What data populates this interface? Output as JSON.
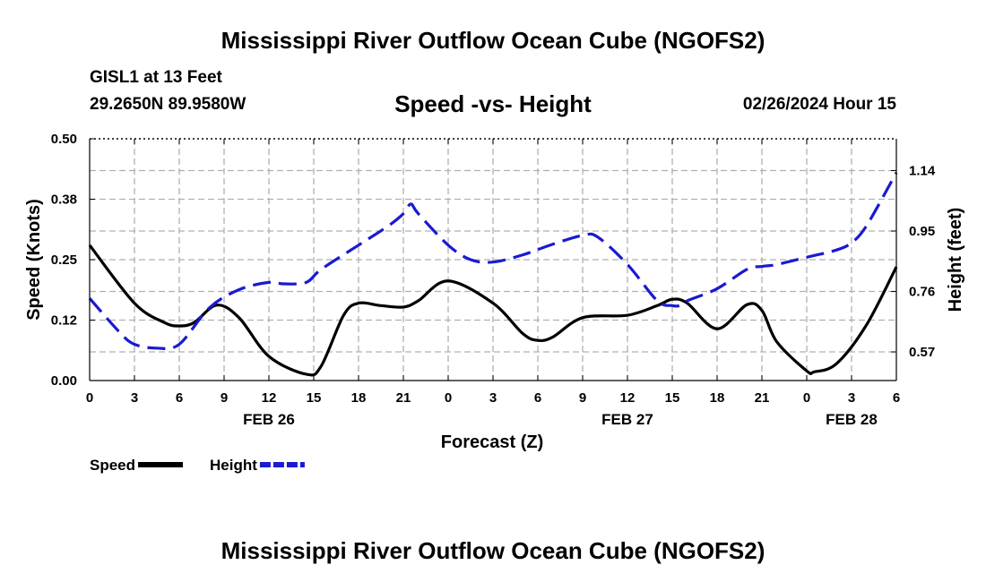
{
  "header": {
    "title": "Mississippi River Outflow Ocean Cube (NGOFS2)",
    "station": "GISL1 at 13 Feet",
    "coords": "29.2650N  89.9580W",
    "subtitle": "Speed -vs- Height",
    "datetime": "02/26/2024 Hour 15"
  },
  "footer": {
    "title": "Mississippi River Outflow Ocean Cube (NGOFS2)"
  },
  "chart_data": {
    "type": "line",
    "xlabel": "Forecast (Z)",
    "ylabel_left": "Speed (Knots)",
    "ylabel_right": "Height (feet)",
    "xlim": [
      0,
      54
    ],
    "ylim_left": [
      0,
      0.5
    ],
    "ylim_right": [
      0.48,
      1.24
    ],
    "x_ticks": [
      0,
      3,
      6,
      9,
      12,
      15,
      18,
      21,
      24,
      27,
      30,
      33,
      36,
      39,
      42,
      45,
      48,
      51,
      54
    ],
    "x_tick_labels": [
      "0",
      "3",
      "6",
      "9",
      "12",
      "15",
      "18",
      "21",
      "0",
      "3",
      "6",
      "9",
      "12",
      "15",
      "18",
      "21",
      "0",
      "3",
      "6"
    ],
    "date_labels": [
      {
        "x": 12,
        "label": "FEB 26"
      },
      {
        "x": 36,
        "label": "FEB 27"
      },
      {
        "x": 51,
        "label": "FEB 28"
      }
    ],
    "y_left_ticks": [
      0.0,
      0.125,
      0.25,
      0.375,
      0.5
    ],
    "y_left_tick_labels": [
      "0.00",
      "0.12",
      "0.25",
      "0.38",
      "0.50"
    ],
    "y_right_ticks": [
      0.57,
      0.76,
      0.95,
      1.14
    ],
    "y_right_tick_labels": [
      "0.57",
      "0.76",
      "0.95",
      "1.14"
    ],
    "grid": true,
    "legend": "bottom-left",
    "series": [
      {
        "name": "Speed",
        "axis": "left",
        "color": "#000000",
        "style": "solid",
        "x": [
          0,
          3,
          5,
          6,
          7,
          8.5,
          10,
          12,
          14.5,
          15.5,
          17,
          18,
          19.5,
          21,
          22,
          24,
          27,
          29,
          30,
          31,
          33,
          36,
          38,
          39,
          40,
          42,
          44,
          45,
          46,
          48,
          48.5,
          50,
          52,
          54
        ],
        "y": [
          0.28,
          0.16,
          0.12,
          0.113,
          0.12,
          0.156,
          0.13,
          0.05,
          0.013,
          0.03,
          0.135,
          0.16,
          0.155,
          0.152,
          0.165,
          0.206,
          0.16,
          0.097,
          0.083,
          0.09,
          0.13,
          0.135,
          0.155,
          0.168,
          0.16,
          0.107,
          0.157,
          0.145,
          0.08,
          0.02,
          0.018,
          0.035,
          0.115,
          0.235
        ]
      },
      {
        "name": "Height",
        "axis": "left",
        "color": "#1a1ad0",
        "style": "dashed",
        "x": [
          0,
          2,
          3,
          4.5,
          6,
          8,
          10,
          12,
          13,
          14.5,
          15.5,
          18,
          20,
          21,
          21.5,
          22,
          24,
          25.5,
          27,
          29,
          31,
          33,
          34,
          36,
          38,
          39,
          39.5,
          40,
          42,
          44,
          45,
          46,
          48,
          50,
          51,
          52,
          54
        ],
        "y": [
          0.17,
          0.1,
          0.075,
          0.067,
          0.075,
          0.15,
          0.188,
          0.203,
          0.2,
          0.203,
          0.23,
          0.28,
          0.32,
          0.345,
          0.365,
          0.345,
          0.28,
          0.25,
          0.245,
          0.26,
          0.282,
          0.3,
          0.297,
          0.24,
          0.165,
          0.155,
          0.155,
          0.165,
          0.19,
          0.23,
          0.236,
          0.24,
          0.255,
          0.27,
          0.285,
          0.32,
          0.43
        ]
      }
    ],
    "legend_entries": [
      {
        "label": "Speed",
        "color": "#000000",
        "style": "solid"
      },
      {
        "label": "Height",
        "color": "#1a1ad0",
        "style": "dashed"
      }
    ]
  }
}
